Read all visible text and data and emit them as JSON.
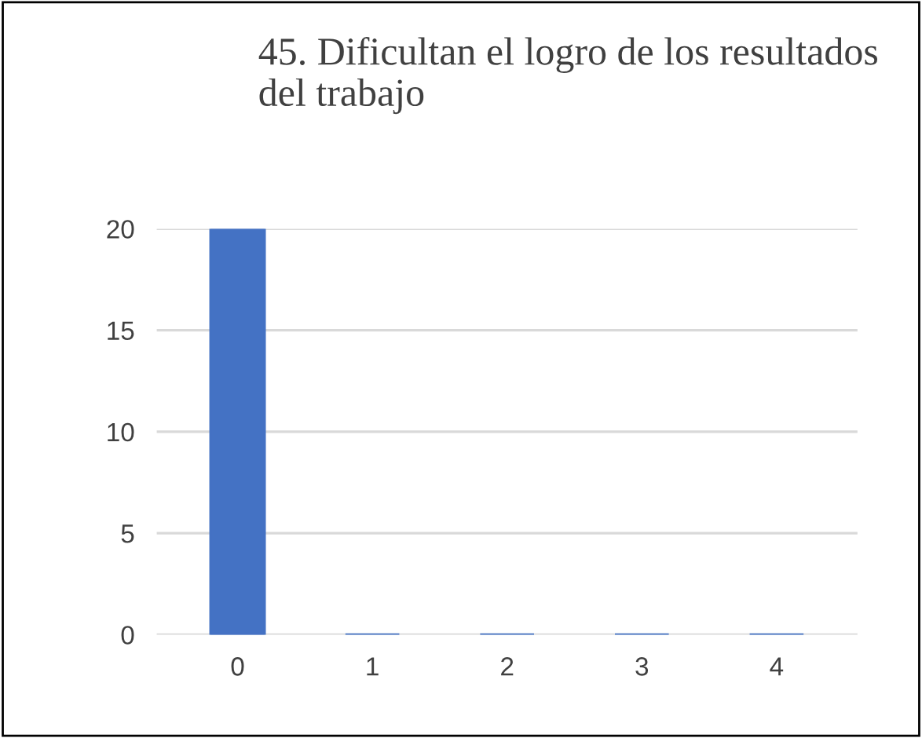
{
  "chart_data": {
    "type": "bar",
    "title": "45. Dificultan el logro de los resultados del trabajo",
    "categories": [
      "0",
      "1",
      "2",
      "3",
      "4"
    ],
    "values": [
      20,
      0,
      0,
      0,
      0
    ],
    "color": "#4472c4",
    "ylim": [
      0,
      20
    ],
    "yticks": [
      0,
      5,
      10,
      15,
      20
    ],
    "grid": "y"
  }
}
